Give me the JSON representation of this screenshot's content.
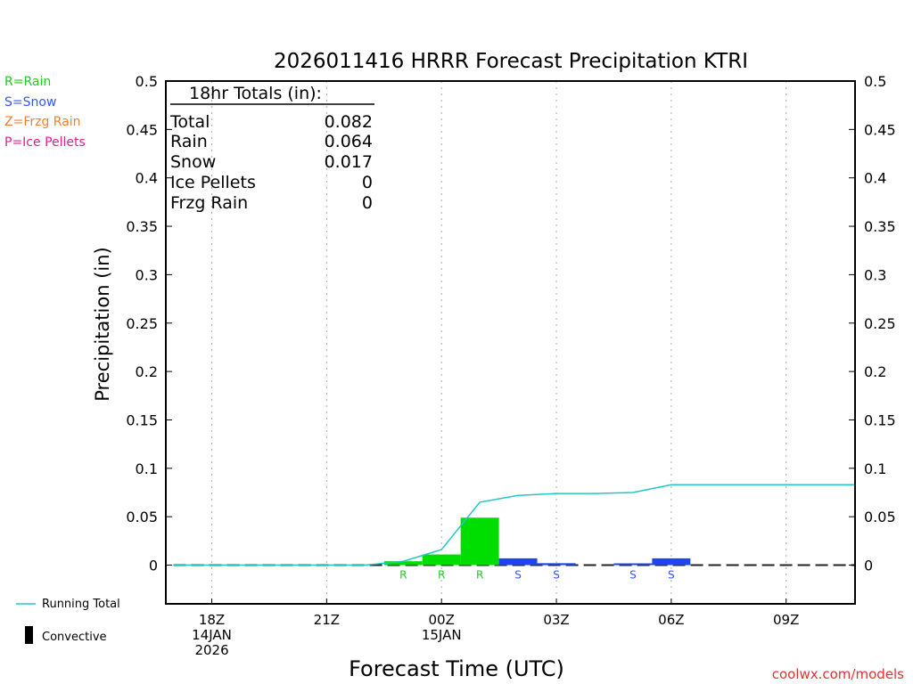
{
  "title": "2026011416 HRRR Forecast Precipitation KTRI",
  "legend": {
    "rain": {
      "label": "R=Rain",
      "color": "#22cc22"
    },
    "snow": {
      "label": "S=Snow",
      "color": "#3355ff"
    },
    "frzg": {
      "label": "Z=Frzg Rain",
      "color": "#f08030"
    },
    "ice": {
      "label": "P=Ice Pellets",
      "color": "#e0208f"
    },
    "running": {
      "label": "Running Total",
      "color": "#20c8c8"
    },
    "convective": {
      "label": "Convective",
      "color": "#000000"
    }
  },
  "totals_box": {
    "heading": "18hr Totals (in):",
    "rows": [
      {
        "label": "Total",
        "value": "0.082"
      },
      {
        "label": "Rain",
        "value": "0.064"
      },
      {
        "label": "Snow",
        "value": "0.017"
      },
      {
        "label": "Ice Pellets",
        "value": "0"
      },
      {
        "label": "Frzg Rain",
        "value": "0"
      }
    ]
  },
  "watermark": "coolwx.com/models",
  "chart_data": {
    "type": "bar",
    "title": "2026011416 HRRR Forecast Precipitation KTRI",
    "xlabel": "Forecast Time (UTC)",
    "ylabel": "Precipitation (in)",
    "ylim": [
      -0.04,
      0.5
    ],
    "yticks": [
      "0",
      "0.05",
      "0.1",
      "0.15",
      "0.2",
      "0.25",
      "0.3",
      "0.35",
      "0.4",
      "0.45",
      "0.5"
    ],
    "xlim_hours": [
      -1.2,
      16.8
    ],
    "x_ticks": [
      {
        "hour": 0,
        "lines": [
          "18Z",
          "14JAN",
          "2026"
        ]
      },
      {
        "hour": 3,
        "lines": [
          "21Z"
        ]
      },
      {
        "hour": 6,
        "lines": [
          "00Z",
          "15JAN"
        ]
      },
      {
        "hour": 9,
        "lines": [
          "03Z"
        ]
      },
      {
        "hour": 12,
        "lines": [
          "06Z"
        ]
      },
      {
        "hour": 15,
        "lines": [
          "09Z"
        ]
      }
    ],
    "grid": "vertical dotted",
    "hourly": [
      {
        "hour": 5,
        "value": 0.004,
        "type": "R"
      },
      {
        "hour": 6,
        "value": 0.011,
        "type": "R"
      },
      {
        "hour": 7,
        "value": 0.049,
        "type": "R"
      },
      {
        "hour": 8,
        "value": 0.007,
        "type": "S"
      },
      {
        "hour": 9,
        "value": 0.002,
        "type": "S"
      },
      {
        "hour": 10,
        "value": 0.0,
        "type": ""
      },
      {
        "hour": 11,
        "value": 0.0005,
        "type": "S"
      },
      {
        "hour": 12,
        "value": 0.007,
        "type": "S"
      }
    ],
    "series": [
      {
        "name": "Running Total",
        "x": [
          -1,
          0,
          1,
          2,
          3,
          4,
          5,
          6,
          7,
          8,
          9,
          10,
          11,
          12,
          13,
          14,
          15,
          16,
          16.8
        ],
        "values": [
          0,
          0,
          0,
          0,
          0,
          0,
          0.004,
          0.016,
          0.065,
          0.072,
          0.074,
          0.074,
          0.075,
          0.083,
          0.083,
          0.083,
          0.083,
          0.083,
          0.083
        ]
      }
    ]
  }
}
